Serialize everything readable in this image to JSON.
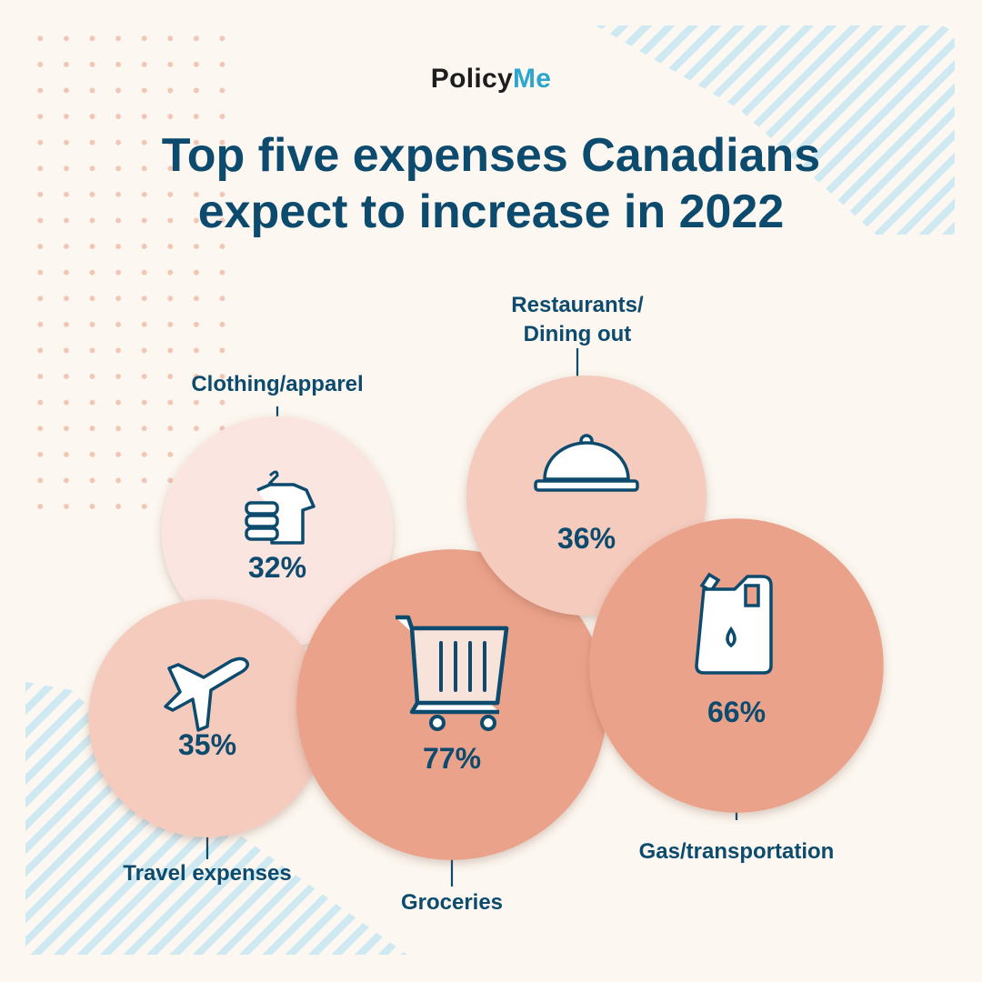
{
  "brand": {
    "name_part1": "Policy",
    "name_part2": "Me"
  },
  "title_line1": "Top five expenses Canadians",
  "title_line2": "expect to increase in 2022",
  "chart_data": {
    "type": "bubble",
    "unit": "%",
    "categories": [
      "Clothing/apparel",
      "Travel expenses",
      "Groceries",
      "Restaurants/Dining out",
      "Gas/transportation"
    ],
    "values": [
      32,
      35,
      77,
      36,
      66
    ],
    "value_labels": [
      "32%",
      "35%",
      "77%",
      "36%",
      "66%"
    ],
    "icons": [
      "clothing-icon",
      "airplane-icon",
      "shopping-cart-icon",
      "cloche-icon",
      "fuel-can-icon"
    ],
    "colors": [
      "#fbe5e1",
      "#f4cbbd",
      "#eba28a",
      "#f4cbbd",
      "#eba28a"
    ]
  },
  "colors": {
    "text": "#0c4a6e",
    "background": "#fcf7f0",
    "accent": "#2aa6cf",
    "stripes": "#cfe9f2",
    "dots": "#f2c6b4"
  }
}
